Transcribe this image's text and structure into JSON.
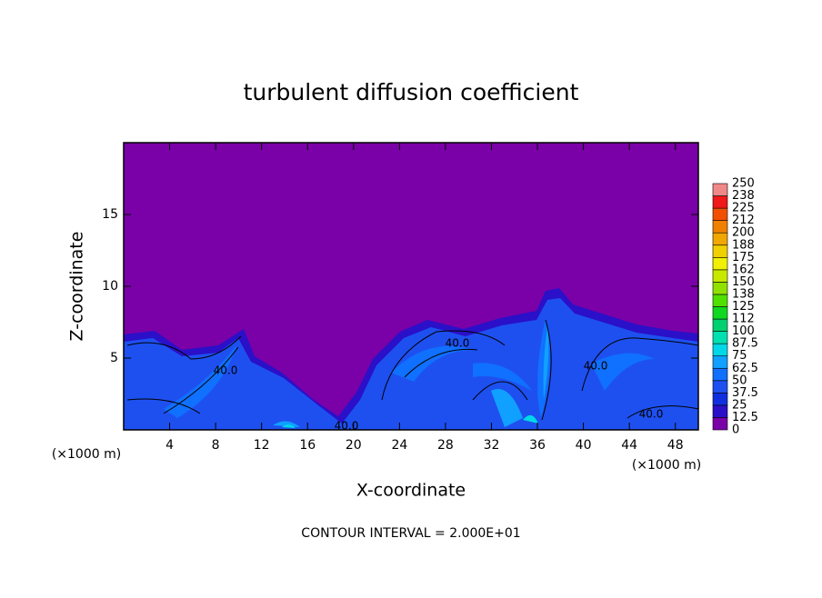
{
  "chart_data": {
    "type": "contour",
    "title": "turbulent diffusion coefficient",
    "xlabel": "X-coordinate",
    "ylabel": "Z-coordinate",
    "xunit": "(×1000 m)",
    "yunit": "(×1000 m)",
    "xlim": [
      0,
      50
    ],
    "xticks": [
      4,
      8,
      12,
      16,
      20,
      24,
      28,
      32,
      36,
      40,
      44,
      48
    ],
    "ylim": [
      0,
      20
    ],
    "yticks": [
      5,
      10,
      15
    ],
    "colorbar": {
      "levels": [
        0,
        12.5,
        25,
        37.5,
        50,
        62.5,
        75,
        87.5,
        100,
        112,
        125,
        138,
        150,
        162,
        175,
        188,
        200,
        212,
        225,
        238,
        250
      ],
      "colors": [
        "#7a00a8",
        "#2a10c8",
        "#1030e0",
        "#1e50f0",
        "#1070ff",
        "#10a0ff",
        "#00d8e8",
        "#00e0b0",
        "#00d070",
        "#10d820",
        "#50e000",
        "#90e000",
        "#c8e800",
        "#f0f000",
        "#f0d000",
        "#f0a800",
        "#f08000",
        "#f05000",
        "#f01818",
        "#f08888"
      ]
    },
    "contour_labels": [
      "40.0",
      "40.0",
      "40.0",
      "40.0",
      "40.0"
    ],
    "annotation": "CONTOUR INTERVAL = 2.000E+01"
  }
}
